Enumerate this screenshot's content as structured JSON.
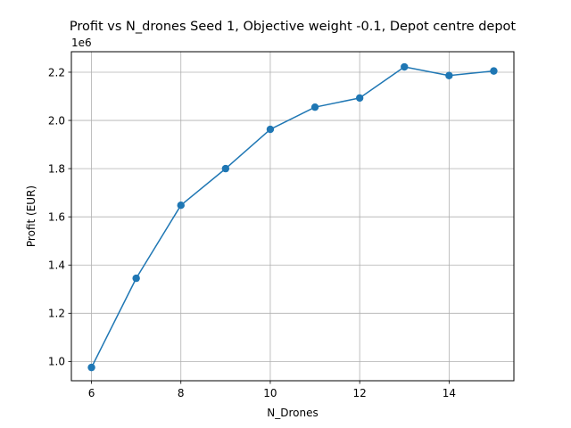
{
  "chart_data": {
    "type": "line",
    "title": "Profit vs N_drones Seed 1, Objective weight  -0.1, Depot centre depot",
    "xlabel": "N_Drones",
    "ylabel": "Profit (EUR)",
    "y_offset_label": "1e6",
    "y_scale_factor": 1000000,
    "x": [
      6,
      7,
      8,
      9,
      10,
      11,
      12,
      13,
      14,
      15
    ],
    "series": [
      {
        "values": [
          975000,
          1345000,
          1648000,
          1800000,
          1963000,
          2055000,
          2093000,
          2222000,
          2186000,
          2205000
        ],
        "color": "#1f77b4",
        "marker": "circle"
      }
    ],
    "xlim": [
      5.55,
      15.45
    ],
    "ylim": [
      920000,
      2285000
    ],
    "x_ticks": [
      6,
      8,
      10,
      12,
      14
    ],
    "x_tick_labels": [
      "6",
      "8",
      "10",
      "12",
      "14"
    ],
    "y_ticks": [
      1000000,
      1200000,
      1400000,
      1600000,
      1800000,
      2000000,
      2200000
    ],
    "y_tick_labels": [
      "1.0",
      "1.2",
      "1.4",
      "1.6",
      "1.8",
      "2.0",
      "2.2"
    ],
    "grid": true,
    "grid_color": "#b0b0b0",
    "legend": false
  }
}
